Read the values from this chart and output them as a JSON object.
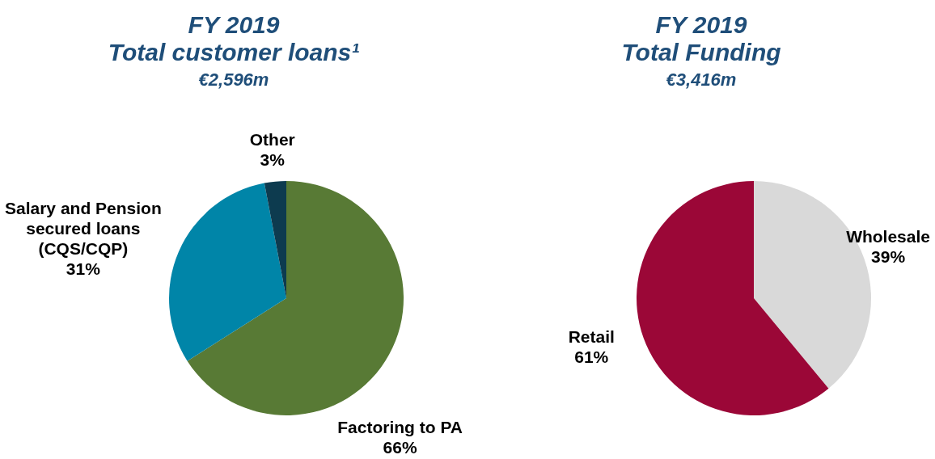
{
  "chart_data": [
    {
      "type": "pie",
      "title": "FY 2019",
      "subtitle": "Total customer loans¹",
      "annotations": [
        "€2,596m"
      ],
      "categories": [
        "Factoring to PA",
        "Salary and Pension secured loans (CQS/CQP)",
        "Other"
      ],
      "values": [
        66,
        31,
        3
      ],
      "value_labels": [
        "66%",
        "31%",
        "3%"
      ],
      "colors": [
        "#587a35",
        "#0085a8",
        "#0d3b4f"
      ],
      "legend": false
    },
    {
      "type": "pie",
      "title": "FY 2019",
      "subtitle": "Total Funding",
      "annotations": [
        "€3,416m"
      ],
      "categories": [
        "Wholesale",
        "Retail"
      ],
      "values": [
        39,
        61
      ],
      "value_labels": [
        "39%",
        "61%"
      ],
      "colors": [
        "#d9d9d9",
        "#9b0737"
      ],
      "legend": false
    }
  ]
}
